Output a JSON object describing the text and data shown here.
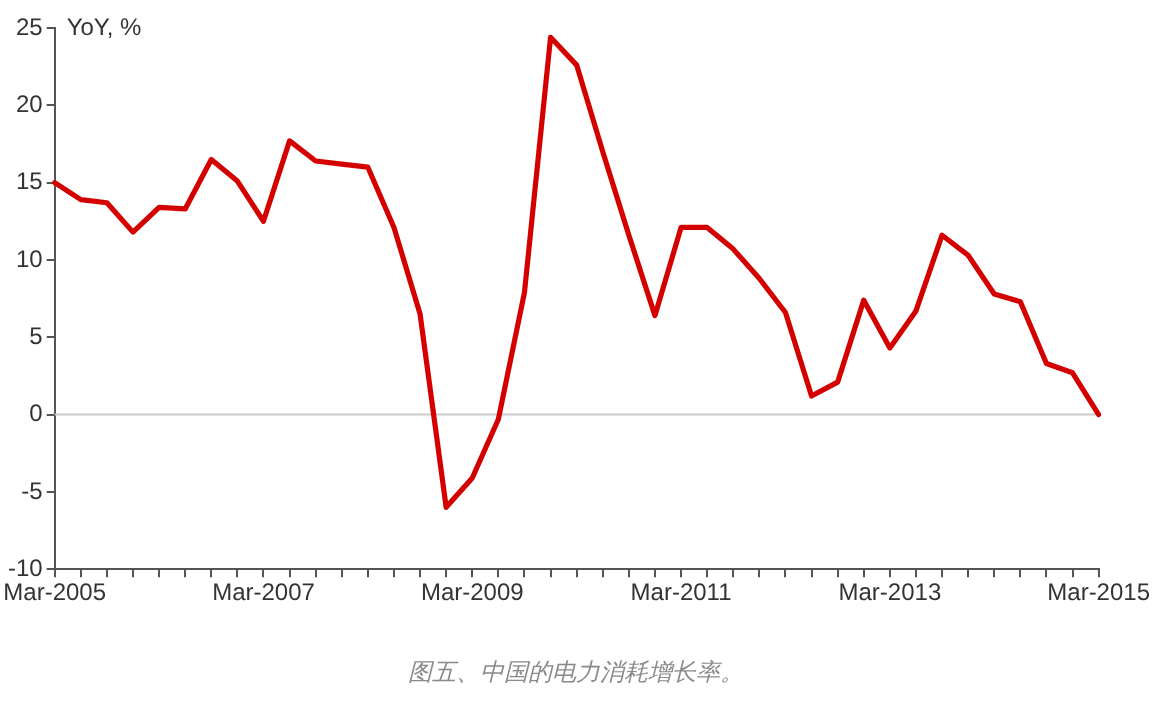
{
  "chart_data": {
    "type": "line",
    "ylabel": "YoY, %",
    "annotations": [
      "图五、中国的电力消耗增长率。"
    ],
    "categories": [
      "Mar-2005",
      null,
      null,
      null,
      null,
      null,
      null,
      null,
      "Mar-2007",
      null,
      null,
      null,
      null,
      null,
      null,
      null,
      "Mar-2009",
      null,
      null,
      null,
      null,
      null,
      null,
      null,
      "Mar-2011",
      null,
      null,
      null,
      null,
      null,
      null,
      null,
      "Mar-2013",
      null,
      null,
      null,
      null,
      null,
      null,
      null,
      "Mar-2015"
    ],
    "series": [
      {
        "color": "#d40000",
        "values": [
          15.0,
          13.9,
          13.7,
          11.8,
          13.4,
          13.3,
          16.5,
          15.1,
          12.5,
          17.7,
          16.4,
          16.2,
          16.0,
          12.1,
          6.5,
          -6.0,
          -4.1,
          -0.3,
          7.9,
          24.4,
          22.6,
          17.0,
          11.6,
          6.4,
          12.1,
          12.1,
          10.7,
          8.8,
          6.6,
          1.2,
          2.1,
          7.4,
          4.3,
          6.7,
          11.6,
          10.3,
          7.8,
          7.3,
          3.3,
          2.7,
          0.0
        ]
      }
    ],
    "ylim": [
      -10,
      25
    ],
    "yticks": [
      -10,
      -5,
      0,
      5,
      10,
      15,
      20,
      25
    ],
    "grid": false,
    "legend": false,
    "marker": "none",
    "line_style": "solid",
    "ref_lines": [
      {
        "axis": "y",
        "value": 0,
        "color": "#cccccc"
      }
    ]
  }
}
